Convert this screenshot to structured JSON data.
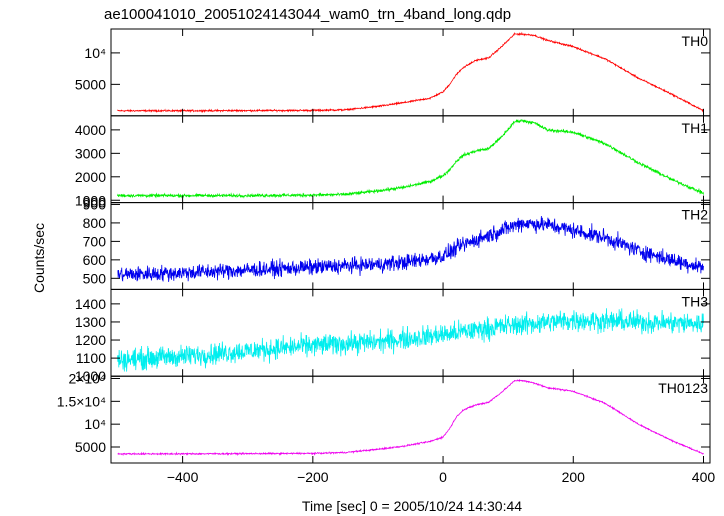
{
  "chart_data": {
    "type": "line",
    "title": "ae100041010_20051024143044_wam0_trn_4band_long.qdp",
    "xlabel": "Time [sec] 0 = 2005/10/24 14:30:44",
    "ylabel": "Counts/sec",
    "xlim": [
      -510,
      410
    ],
    "x_ticks": [
      -400,
      -200,
      0,
      200,
      400
    ],
    "x_tick_labels": [
      "−400",
      "−200",
      "0",
      "200",
      "400"
    ],
    "panels": [
      {
        "name": "TH0",
        "color": "#ff0000",
        "ylim": [
          0,
          13800
        ],
        "y_ticks": [
          5000,
          10000
        ],
        "y_tick_labels": [
          "5000",
          "10⁴"
        ],
        "noise": 90,
        "x": [
          -500,
          -400,
          -300,
          -200,
          -150,
          -100,
          -60,
          -20,
          0,
          10,
          20,
          30,
          50,
          70,
          90,
          110,
          120,
          140,
          160,
          200,
          250,
          300,
          350,
          400
        ],
        "y": [
          800,
          800,
          830,
          860,
          950,
          1500,
          2100,
          2800,
          3800,
          5000,
          6500,
          7600,
          8800,
          9200,
          11000,
          13000,
          13000,
          12800,
          12000,
          11000,
          9000,
          6000,
          3500,
          800
        ]
      },
      {
        "name": "TH1",
        "color": "#00ee00",
        "ylim": [
          900,
          4600
        ],
        "y_ticks": [
          900,
          1000,
          2000,
          3000,
          4000
        ],
        "y_tick_labels": [
          "900",
          "1000",
          "2000",
          "3000",
          "4000"
        ],
        "noise": 45,
        "x": [
          -500,
          -400,
          -300,
          -200,
          -150,
          -100,
          -60,
          -20,
          0,
          10,
          20,
          30,
          50,
          70,
          90,
          110,
          120,
          140,
          160,
          200,
          250,
          300,
          350,
          400
        ],
        "y": [
          1200,
          1200,
          1200,
          1220,
          1250,
          1400,
          1550,
          1800,
          2050,
          2300,
          2650,
          2900,
          3100,
          3200,
          3700,
          4350,
          4400,
          4300,
          4000,
          3900,
          3400,
          2600,
          1900,
          1300
        ]
      },
      {
        "name": "TH2",
        "color": "#0000ee",
        "ylim": [
          440,
          910
        ],
        "y_ticks": [
          500,
          600,
          700,
          800,
          900
        ],
        "y_tick_labels": [
          "500",
          "600",
          "700",
          "800",
          "900"
        ],
        "noise": 30,
        "x": [
          -500,
          -400,
          -300,
          -200,
          -100,
          -50,
          0,
          30,
          60,
          90,
          120,
          160,
          200,
          250,
          300,
          350,
          400
        ],
        "y": [
          520,
          530,
          545,
          560,
          575,
          590,
          620,
          680,
          720,
          760,
          800,
          790,
          760,
          720,
          650,
          600,
          560
        ]
      },
      {
        "name": "TH3",
        "color": "#00eeee",
        "ylim": [
          1000,
          1480
        ],
        "y_ticks": [
          1000,
          1100,
          1200,
          1300,
          1400
        ],
        "y_tick_labels": [
          "1000",
          "1100",
          "1200",
          "1300",
          "1400"
        ],
        "noise": 42,
        "x": [
          -500,
          -400,
          -300,
          -200,
          -100,
          0,
          100,
          200,
          300,
          400
        ],
        "y": [
          1090,
          1110,
          1140,
          1170,
          1190,
          1230,
          1280,
          1310,
          1300,
          1290
        ]
      },
      {
        "name": "TH0123",
        "color": "#ee00ee",
        "ylim": [
          1500,
          20500
        ],
        "y_ticks": [
          5000,
          10000,
          15000,
          20000
        ],
        "y_tick_labels": [
          "5000",
          "10⁴",
          "1.5×10⁴",
          "2×10⁴"
        ],
        "noise": 110,
        "x": [
          -500,
          -400,
          -300,
          -200,
          -150,
          -100,
          -60,
          -20,
          0,
          10,
          20,
          30,
          50,
          70,
          90,
          110,
          120,
          140,
          160,
          200,
          250,
          300,
          350,
          400
        ],
        "y": [
          3500,
          3500,
          3550,
          3600,
          3800,
          4500,
          5200,
          6200,
          7200,
          9000,
          11500,
          13000,
          14200,
          14800,
          17000,
          19500,
          19600,
          19000,
          18000,
          17200,
          14500,
          10000,
          6500,
          3500
        ]
      }
    ]
  }
}
